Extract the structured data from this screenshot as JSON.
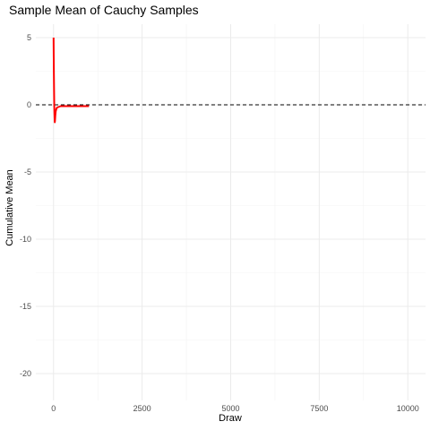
{
  "chart_data": {
    "type": "line",
    "title": "Sample Mean of Cauchy Samples",
    "xlabel": "Draw",
    "ylabel": "Cumulative Mean",
    "xlim": [
      -500,
      10500
    ],
    "ylim": [
      -22,
      6
    ],
    "x_ticks": [
      0,
      2500,
      5000,
      7500,
      10000
    ],
    "x_tick_labels": [
      "0",
      "2500",
      "5000",
      "7500",
      "10000"
    ],
    "y_ticks": [
      5,
      0,
      -5,
      -10,
      -15,
      -20
    ],
    "y_tick_labels": [
      "5",
      "0",
      "-5",
      "-10",
      "-15",
      "-20"
    ],
    "grid": true,
    "reference_line": {
      "y": 0,
      "style": "dashed",
      "color": "#000000"
    },
    "series": [
      {
        "color": "#ff0000",
        "x": [
          1,
          5,
          10,
          15,
          20,
          25,
          30,
          35,
          40,
          50,
          60,
          80,
          100,
          200,
          500,
          1000
        ],
        "y": [
          5.0,
          3.6,
          2.2,
          1.0,
          0.0,
          -0.6,
          -1.0,
          -1.3,
          -1.2,
          -0.8,
          -0.5,
          -0.3,
          -0.2,
          -0.1,
          -0.1,
          -0.1
        ]
      }
    ]
  }
}
